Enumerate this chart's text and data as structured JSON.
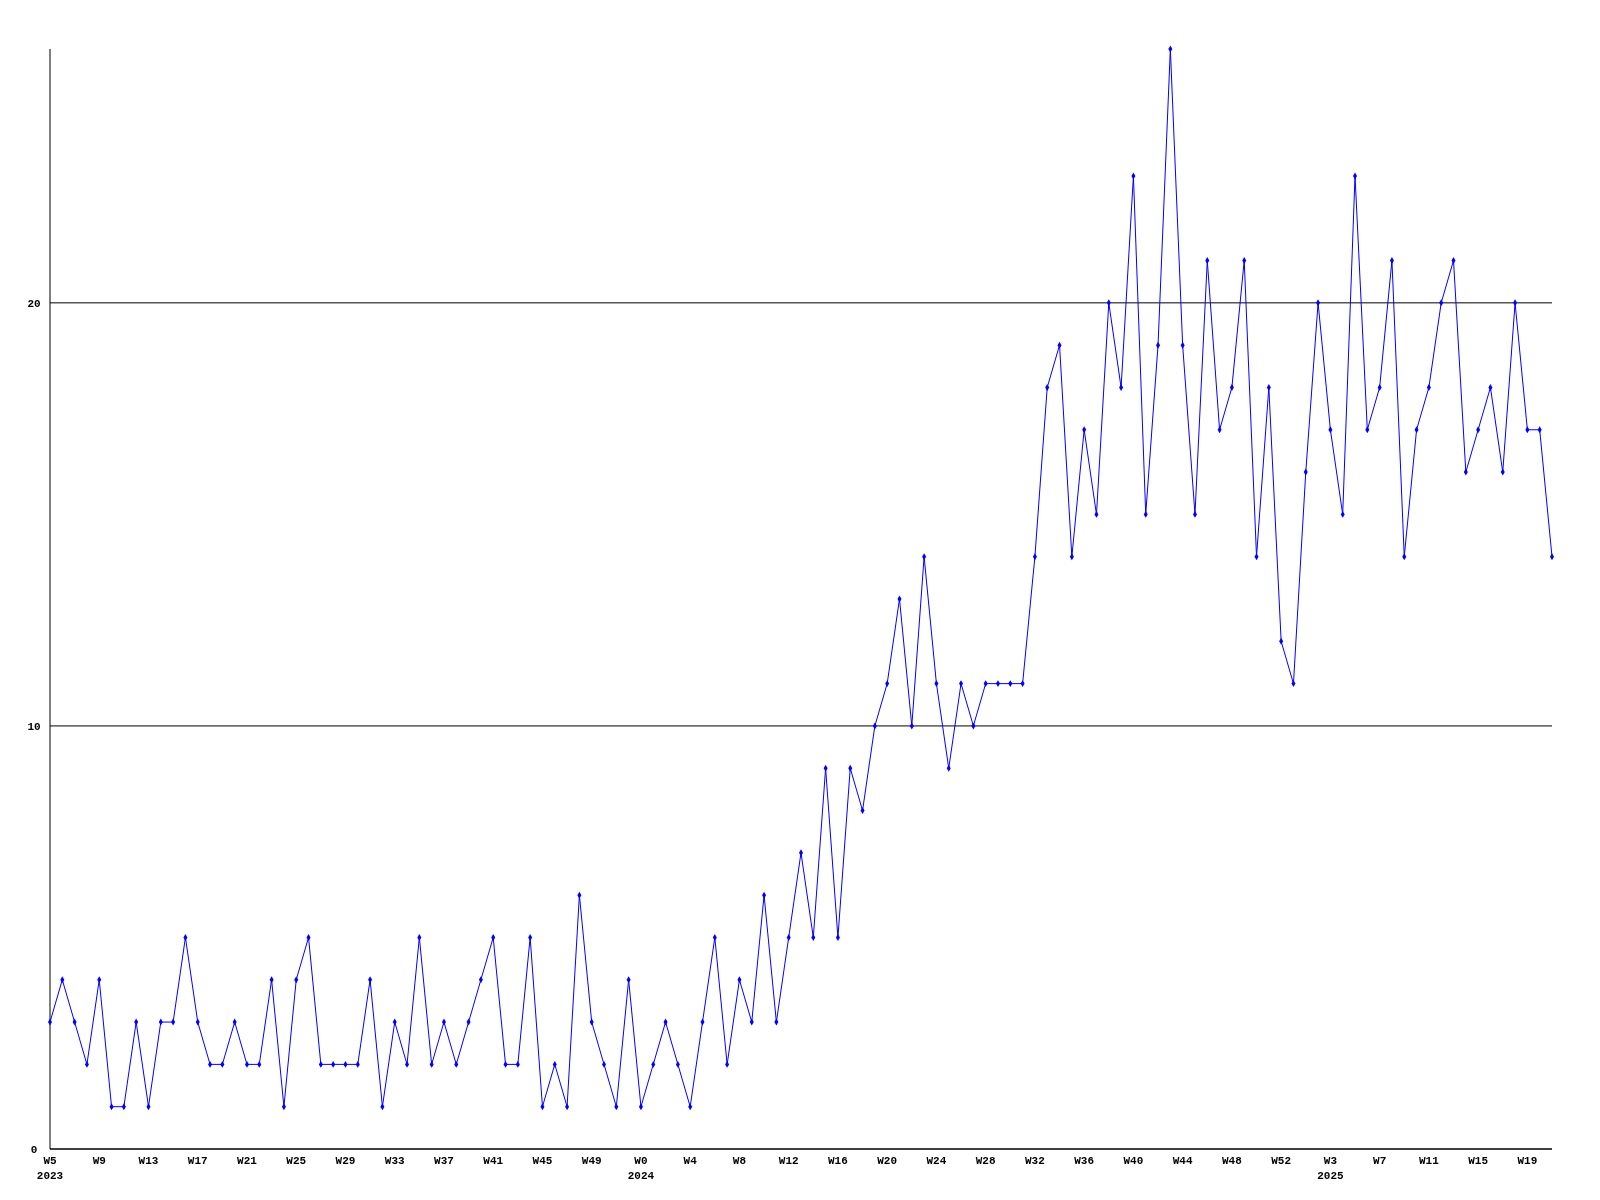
{
  "chart_data": {
    "type": "line",
    "categories": [
      "W5\n2023",
      null,
      null,
      null,
      "W9",
      null,
      null,
      null,
      "W13",
      null,
      null,
      null,
      "W17",
      null,
      null,
      null,
      "W21",
      null,
      null,
      null,
      "W25",
      null,
      null,
      null,
      "W29",
      null,
      null,
      null,
      "W33",
      null,
      null,
      null,
      "W37",
      null,
      null,
      null,
      "W41",
      null,
      null,
      null,
      "W45",
      null,
      null,
      null,
      "W49",
      null,
      null,
      null,
      "W0\n2024",
      null,
      null,
      null,
      "W4",
      null,
      null,
      null,
      "W8",
      null,
      null,
      null,
      "W12",
      null,
      null,
      null,
      "W16",
      null,
      null,
      null,
      "W20",
      null,
      null,
      null,
      "W24",
      null,
      null,
      null,
      "W28",
      null,
      null,
      null,
      "W32",
      null,
      null,
      null,
      "W36",
      null,
      null,
      null,
      "W40",
      null,
      null,
      null,
      "W44",
      null,
      null,
      null,
      "W48",
      null,
      null,
      null,
      "W52",
      null,
      null,
      null,
      "W3\n2025",
      null,
      null,
      null,
      "W7",
      null,
      null,
      null,
      "W11",
      null,
      null,
      null,
      "W15",
      null,
      null,
      null,
      "W19",
      null,
      null
    ],
    "series": [
      {
        "color": "#0000ff",
        "values": [
          3,
          4,
          3,
          2,
          4,
          1,
          1,
          3,
          1,
          3,
          3,
          5,
          3,
          2,
          2,
          3,
          2,
          2,
          4,
          1,
          4,
          5,
          2,
          2,
          2,
          2,
          4,
          1,
          3,
          2,
          5,
          2,
          3,
          2,
          3,
          4,
          5,
          2,
          2,
          5,
          1,
          2,
          1,
          6,
          3,
          2,
          1,
          4,
          1,
          2,
          3,
          2,
          1,
          3,
          5,
          2,
          4,
          3,
          6,
          3,
          5,
          7,
          5,
          9,
          5,
          9,
          8,
          10,
          11,
          13,
          10,
          14,
          11,
          9,
          11,
          10,
          11,
          11,
          11,
          11,
          14,
          18,
          19,
          14,
          17,
          15,
          20,
          18,
          23,
          15,
          19,
          26,
          19,
          15,
          21,
          17,
          18,
          21,
          14,
          18,
          12,
          11,
          16,
          20,
          17,
          15,
          23,
          17,
          18,
          21,
          14,
          17,
          18,
          20,
          21,
          16,
          17,
          18,
          16,
          20,
          17,
          17,
          14
        ]
      }
    ],
    "ylim": [
      0,
      26
    ],
    "yticks": [
      0,
      10,
      20
    ],
    "grid": "y",
    "marker": "diamond",
    "line_style": "solid"
  }
}
